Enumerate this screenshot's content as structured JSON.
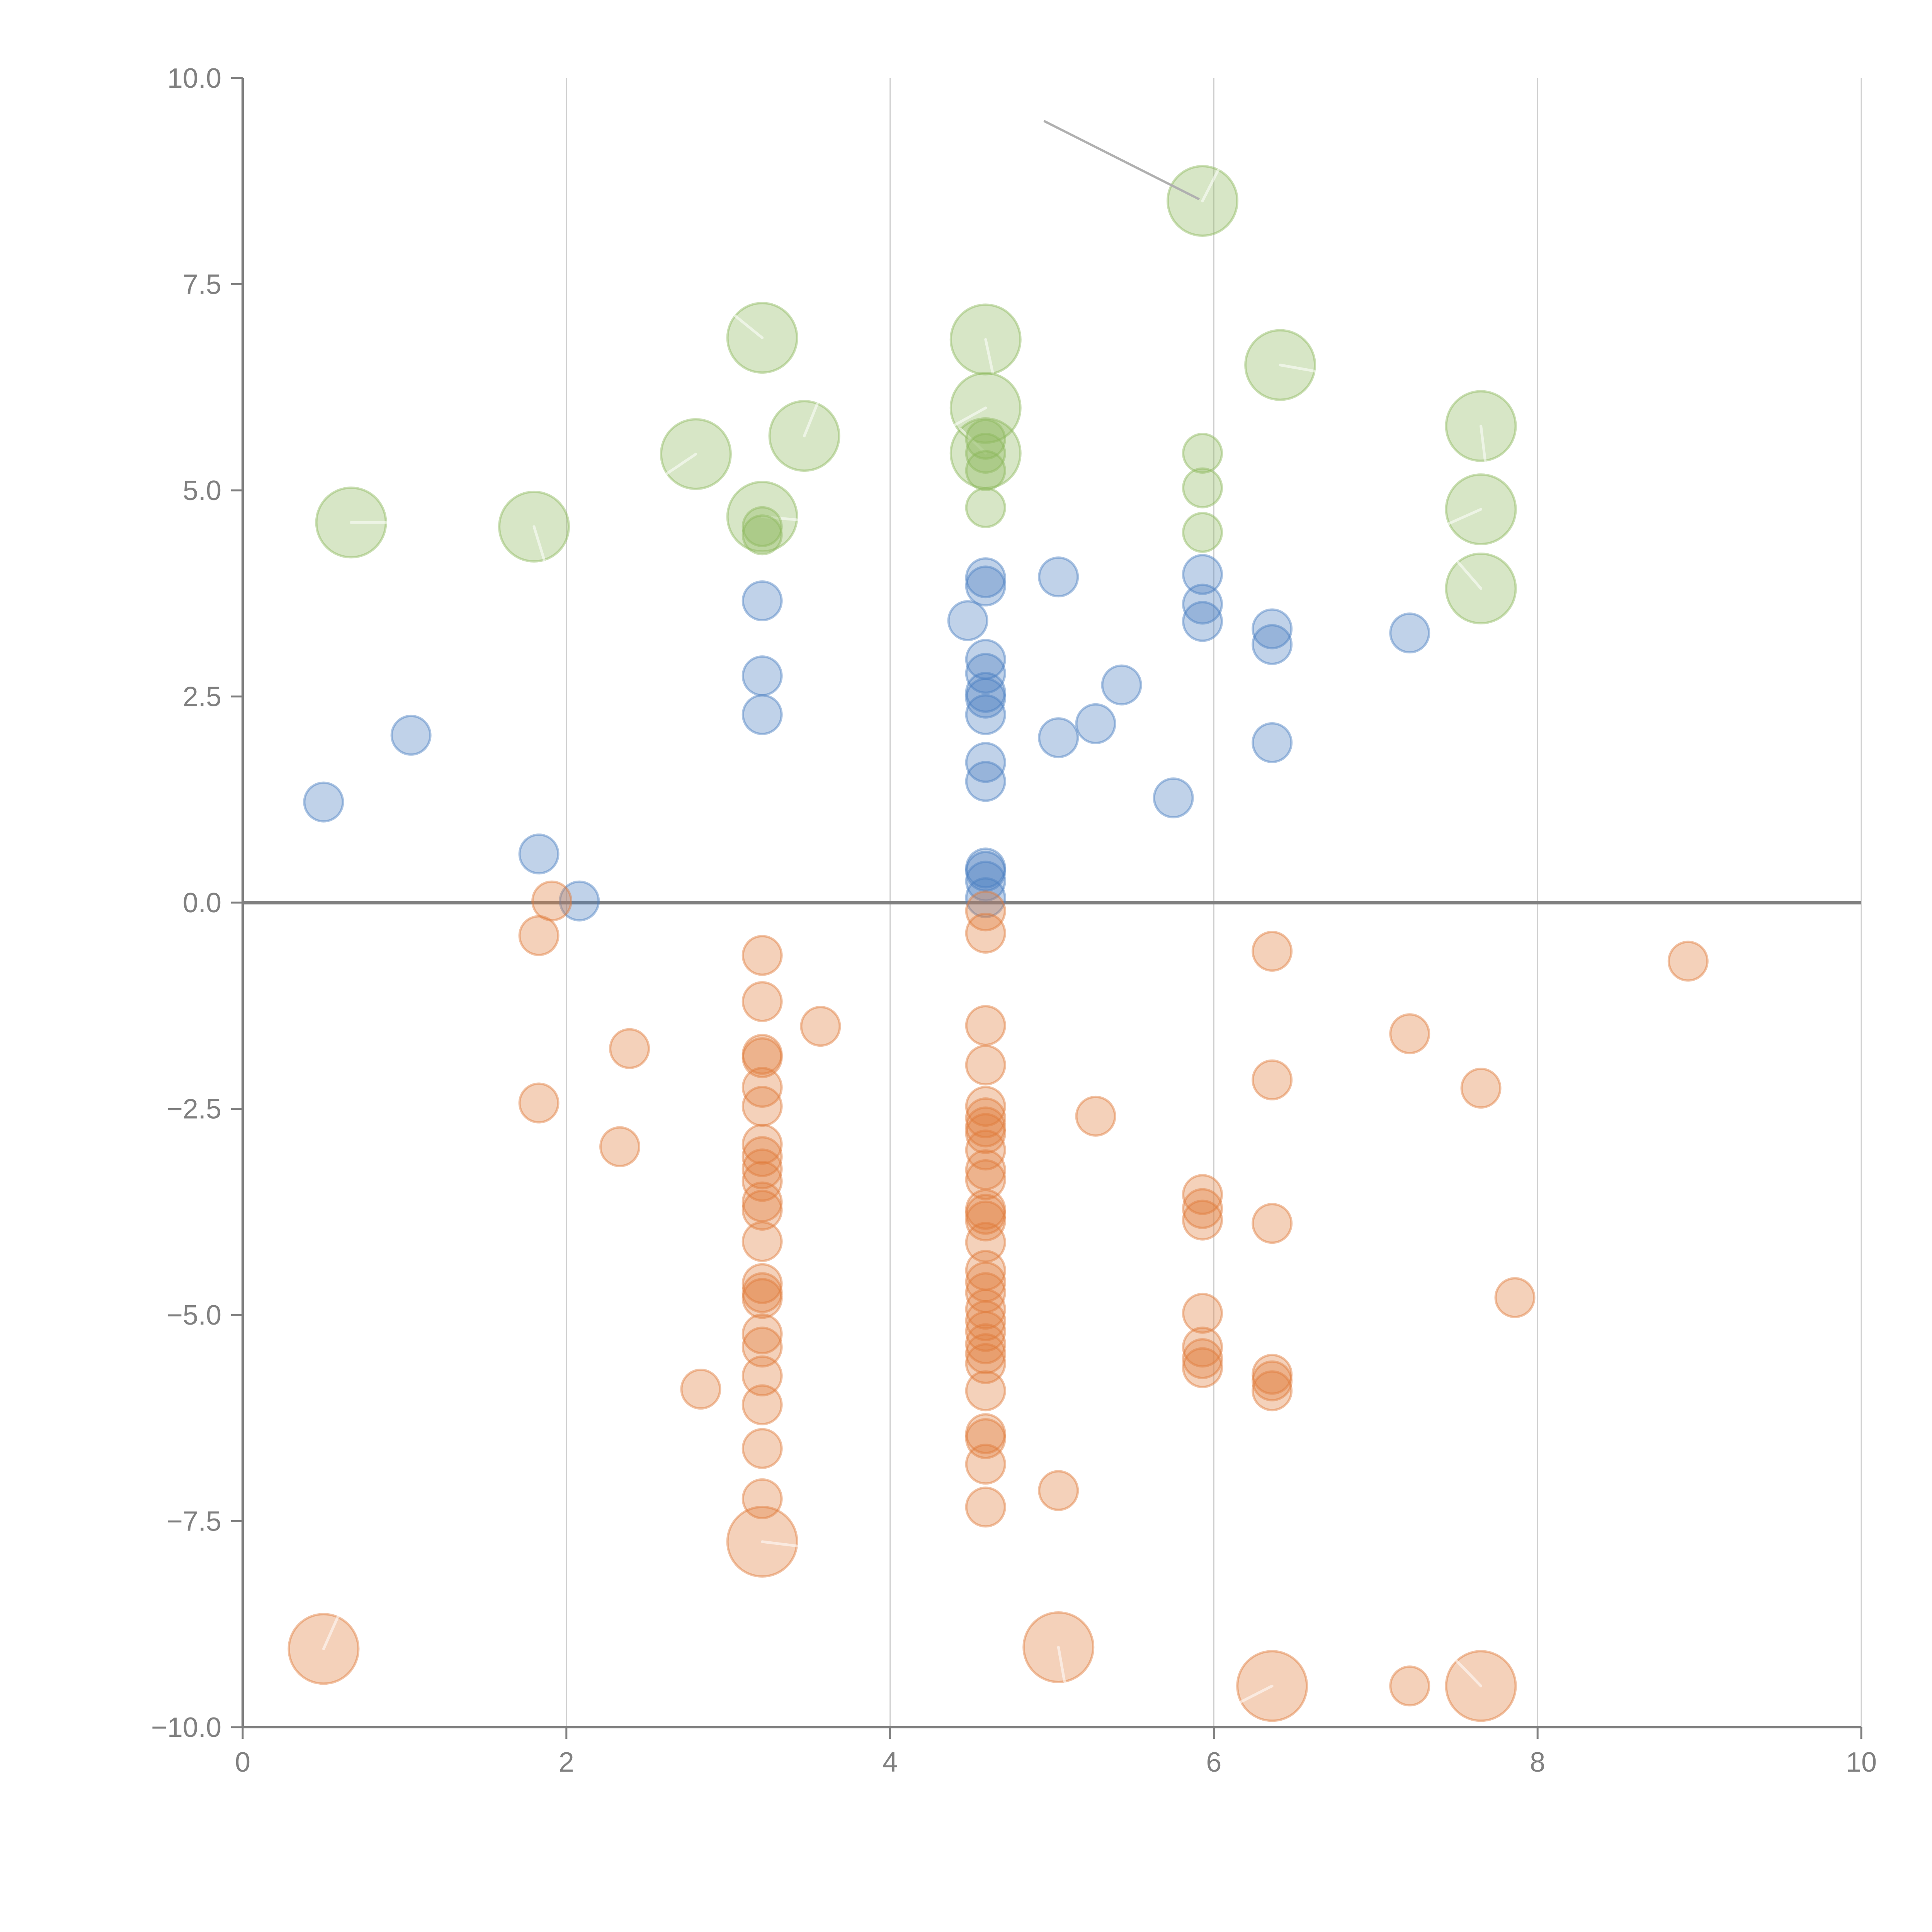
{
  "chart_data": {
    "type": "scatter",
    "title": "",
    "xlabel": "",
    "ylabel": "",
    "xlim": [
      0,
      10
    ],
    "ylim": [
      -10,
      10
    ],
    "x_ticks": [
      "0",
      "2",
      "4",
      "6",
      "8",
      "10"
    ],
    "x_tick_values": [
      0,
      2,
      4,
      6,
      8,
      10
    ],
    "y_ticks": [
      "10.0",
      "7.5",
      "5.0",
      "2.5",
      "0.0",
      "−2.5",
      "−5.0",
      "−7.5",
      "−10.0"
    ],
    "y_tick_values": [
      10,
      7.5,
      5,
      2.5,
      0,
      -2.5,
      -5,
      -7.5,
      -10
    ],
    "grid": "vertical-major",
    "zero_line": true,
    "legend": "none",
    "series": [
      {
        "name": "green",
        "color": "#8cb85c",
        "points": [
          {
            "x": 0.67,
            "y": 4.61,
            "size": "large"
          },
          {
            "x": 1.8,
            "y": 4.56,
            "size": "large"
          },
          {
            "x": 2.8,
            "y": 5.44,
            "size": "large"
          },
          {
            "x": 3.21,
            "y": 6.85,
            "size": "large"
          },
          {
            "x": 3.47,
            "y": 5.66,
            "size": "large"
          },
          {
            "x": 3.21,
            "y": 4.68,
            "size": "large"
          },
          {
            "x": 4.59,
            "y": 6.83,
            "size": "large"
          },
          {
            "x": 4.59,
            "y": 6.0,
            "size": "large"
          },
          {
            "x": 4.59,
            "y": 5.45,
            "size": "large"
          },
          {
            "x": 5.93,
            "y": 8.51,
            "size": "large"
          },
          {
            "x": 6.41,
            "y": 6.52,
            "size": "large"
          },
          {
            "x": 7.65,
            "y": 5.78,
            "size": "large"
          },
          {
            "x": 7.65,
            "y": 4.77,
            "size": "large"
          },
          {
            "x": 7.65,
            "y": 3.81,
            "size": "large"
          },
          {
            "x": 3.21,
            "y": 4.56,
            "size": "small"
          },
          {
            "x": 3.21,
            "y": 4.46,
            "size": "small"
          },
          {
            "x": 4.59,
            "y": 5.62,
            "size": "small"
          },
          {
            "x": 4.59,
            "y": 5.45,
            "size": "small"
          },
          {
            "x": 4.59,
            "y": 5.24,
            "size": "small"
          },
          {
            "x": 4.59,
            "y": 4.79,
            "size": "small"
          },
          {
            "x": 5.93,
            "y": 5.45,
            "size": "small"
          },
          {
            "x": 5.93,
            "y": 5.03,
            "size": "small"
          },
          {
            "x": 5.93,
            "y": 4.49,
            "size": "small"
          }
        ]
      },
      {
        "name": "blue",
        "color": "#4a7fc1",
        "points": [
          {
            "x": 0.5,
            "y": 1.22,
            "size": "small"
          },
          {
            "x": 1.04,
            "y": 2.03,
            "size": "small"
          },
          {
            "x": 1.83,
            "y": 0.59,
            "size": "small"
          },
          {
            "x": 2.08,
            "y": 0.02,
            "size": "small"
          },
          {
            "x": 3.21,
            "y": 3.66,
            "size": "small"
          },
          {
            "x": 3.21,
            "y": 2.75,
            "size": "small"
          },
          {
            "x": 3.21,
            "y": 2.28,
            "size": "small"
          },
          {
            "x": 4.48,
            "y": 3.42,
            "size": "small"
          },
          {
            "x": 4.59,
            "y": 3.94,
            "size": "small"
          },
          {
            "x": 4.59,
            "y": 3.84,
            "size": "small"
          },
          {
            "x": 4.59,
            "y": 2.95,
            "size": "small"
          },
          {
            "x": 4.59,
            "y": 2.78,
            "size": "small"
          },
          {
            "x": 4.59,
            "y": 2.55,
            "size": "small"
          },
          {
            "x": 4.59,
            "y": 2.48,
            "size": "small"
          },
          {
            "x": 4.59,
            "y": 2.28,
            "size": "small"
          },
          {
            "x": 4.59,
            "y": 1.7,
            "size": "small"
          },
          {
            "x": 4.59,
            "y": 1.47,
            "size": "small"
          },
          {
            "x": 4.59,
            "y": 0.42,
            "size": "small"
          },
          {
            "x": 4.59,
            "y": 0.38,
            "size": "small"
          },
          {
            "x": 4.59,
            "y": 0.26,
            "size": "small"
          },
          {
            "x": 4.59,
            "y": 0.06,
            "size": "small"
          },
          {
            "x": 5.04,
            "y": 3.95,
            "size": "small"
          },
          {
            "x": 5.04,
            "y": 2.0,
            "size": "small"
          },
          {
            "x": 5.27,
            "y": 2.17,
            "size": "small"
          },
          {
            "x": 5.43,
            "y": 2.64,
            "size": "small"
          },
          {
            "x": 5.75,
            "y": 1.27,
            "size": "small"
          },
          {
            "x": 5.93,
            "y": 3.98,
            "size": "small"
          },
          {
            "x": 5.93,
            "y": 3.62,
            "size": "small"
          },
          {
            "x": 5.93,
            "y": 3.41,
            "size": "small"
          },
          {
            "x": 6.36,
            "y": 3.32,
            "size": "small"
          },
          {
            "x": 6.36,
            "y": 3.13,
            "size": "small"
          },
          {
            "x": 6.36,
            "y": 1.94,
            "size": "small"
          },
          {
            "x": 7.21,
            "y": 3.27,
            "size": "small"
          }
        ]
      },
      {
        "name": "orange",
        "color": "#e07b39",
        "points": [
          {
            "x": 1.91,
            "y": 0.02,
            "size": "small"
          },
          {
            "x": 1.83,
            "y": -0.4,
            "size": "small"
          },
          {
            "x": 1.83,
            "y": -2.43,
            "size": "small"
          },
          {
            "x": 2.39,
            "y": -1.77,
            "size": "small"
          },
          {
            "x": 2.33,
            "y": -2.96,
            "size": "small"
          },
          {
            "x": 2.83,
            "y": -5.9,
            "size": "small"
          },
          {
            "x": 3.21,
            "y": -0.64,
            "size": "small"
          },
          {
            "x": 3.21,
            "y": -1.2,
            "size": "small"
          },
          {
            "x": 3.21,
            "y": -1.84,
            "size": "small"
          },
          {
            "x": 3.21,
            "y": -1.88,
            "size": "small"
          },
          {
            "x": 3.21,
            "y": -2.24,
            "size": "small"
          },
          {
            "x": 3.21,
            "y": -2.47,
            "size": "small"
          },
          {
            "x": 3.21,
            "y": -2.93,
            "size": "small"
          },
          {
            "x": 3.21,
            "y": -3.08,
            "size": "small"
          },
          {
            "x": 3.21,
            "y": -3.23,
            "size": "small"
          },
          {
            "x": 3.21,
            "y": -3.38,
            "size": "small"
          },
          {
            "x": 3.21,
            "y": -3.63,
            "size": "small"
          },
          {
            "x": 3.21,
            "y": -3.73,
            "size": "small"
          },
          {
            "x": 3.21,
            "y": -4.11,
            "size": "small"
          },
          {
            "x": 3.21,
            "y": -4.62,
            "size": "small"
          },
          {
            "x": 3.21,
            "y": -4.73,
            "size": "small"
          },
          {
            "x": 3.21,
            "y": -4.8,
            "size": "small"
          },
          {
            "x": 3.21,
            "y": -5.23,
            "size": "small"
          },
          {
            "x": 3.21,
            "y": -5.39,
            "size": "small"
          },
          {
            "x": 3.21,
            "y": -5.74,
            "size": "small"
          },
          {
            "x": 3.21,
            "y": -6.09,
            "size": "small"
          },
          {
            "x": 3.21,
            "y": -6.62,
            "size": "small"
          },
          {
            "x": 3.21,
            "y": -7.23,
            "size": "small"
          },
          {
            "x": 3.57,
            "y": -1.5,
            "size": "small"
          },
          {
            "x": 4.59,
            "y": -0.1,
            "size": "small"
          },
          {
            "x": 4.59,
            "y": -0.37,
            "size": "small"
          },
          {
            "x": 4.59,
            "y": -1.49,
            "size": "small"
          },
          {
            "x": 4.59,
            "y": -1.97,
            "size": "small"
          },
          {
            "x": 4.59,
            "y": -2.47,
            "size": "small"
          },
          {
            "x": 4.59,
            "y": -2.61,
            "size": "small"
          },
          {
            "x": 4.59,
            "y": -2.72,
            "size": "small"
          },
          {
            "x": 4.59,
            "y": -2.8,
            "size": "small"
          },
          {
            "x": 4.59,
            "y": -3.0,
            "size": "small"
          },
          {
            "x": 4.59,
            "y": -3.24,
            "size": "small"
          },
          {
            "x": 4.59,
            "y": -3.36,
            "size": "small"
          },
          {
            "x": 4.59,
            "y": -3.72,
            "size": "small"
          },
          {
            "x": 4.59,
            "y": -3.78,
            "size": "small"
          },
          {
            "x": 4.59,
            "y": -3.86,
            "size": "small"
          },
          {
            "x": 4.59,
            "y": -4.12,
            "size": "small"
          },
          {
            "x": 4.59,
            "y": -4.46,
            "size": "small"
          },
          {
            "x": 4.59,
            "y": -4.6,
            "size": "small"
          },
          {
            "x": 4.59,
            "y": -4.73,
            "size": "small"
          },
          {
            "x": 4.59,
            "y": -4.93,
            "size": "small"
          },
          {
            "x": 4.59,
            "y": -5.07,
            "size": "small"
          },
          {
            "x": 4.59,
            "y": -5.2,
            "size": "small"
          },
          {
            "x": 4.59,
            "y": -5.35,
            "size": "small"
          },
          {
            "x": 4.59,
            "y": -5.47,
            "size": "small"
          },
          {
            "x": 4.59,
            "y": -5.59,
            "size": "small"
          },
          {
            "x": 4.59,
            "y": -5.92,
            "size": "small"
          },
          {
            "x": 4.59,
            "y": -6.44,
            "size": "small"
          },
          {
            "x": 4.59,
            "y": -6.5,
            "size": "small"
          },
          {
            "x": 4.59,
            "y": -6.81,
            "size": "small"
          },
          {
            "x": 4.59,
            "y": -7.33,
            "size": "small"
          },
          {
            "x": 5.04,
            "y": -7.13,
            "size": "small"
          },
          {
            "x": 5.27,
            "y": -2.59,
            "size": "small"
          },
          {
            "x": 5.93,
            "y": -3.54,
            "size": "small"
          },
          {
            "x": 5.93,
            "y": -3.71,
            "size": "small"
          },
          {
            "x": 5.93,
            "y": -3.85,
            "size": "small"
          },
          {
            "x": 5.93,
            "y": -4.98,
            "size": "small"
          },
          {
            "x": 5.93,
            "y": -5.39,
            "size": "small"
          },
          {
            "x": 5.93,
            "y": -5.53,
            "size": "small"
          },
          {
            "x": 5.93,
            "y": -5.64,
            "size": "small"
          },
          {
            "x": 6.36,
            "y": -0.59,
            "size": "small"
          },
          {
            "x": 6.36,
            "y": -2.15,
            "size": "small"
          },
          {
            "x": 6.36,
            "y": -3.89,
            "size": "small"
          },
          {
            "x": 6.36,
            "y": -5.72,
            "size": "small"
          },
          {
            "x": 6.36,
            "y": -5.8,
            "size": "small"
          },
          {
            "x": 6.36,
            "y": -5.92,
            "size": "small"
          },
          {
            "x": 7.21,
            "y": -1.59,
            "size": "small"
          },
          {
            "x": 7.21,
            "y": -9.5,
            "size": "small"
          },
          {
            "x": 7.65,
            "y": -2.25,
            "size": "small"
          },
          {
            "x": 7.86,
            "y": -4.79,
            "size": "small"
          },
          {
            "x": 8.93,
            "y": -0.71,
            "size": "small"
          },
          {
            "x": 0.5,
            "y": -9.05,
            "size": "large"
          },
          {
            "x": 3.21,
            "y": -7.75,
            "size": "large"
          },
          {
            "x": 5.04,
            "y": -9.03,
            "size": "large"
          },
          {
            "x": 6.36,
            "y": -9.5,
            "size": "large"
          },
          {
            "x": 7.65,
            "y": -9.5,
            "size": "large"
          }
        ]
      }
    ],
    "annotation": {
      "type": "leader-line",
      "from": {
        "x": 4.95,
        "y": 9.48
      },
      "to": {
        "x": 5.91,
        "y": 8.53
      }
    }
  }
}
